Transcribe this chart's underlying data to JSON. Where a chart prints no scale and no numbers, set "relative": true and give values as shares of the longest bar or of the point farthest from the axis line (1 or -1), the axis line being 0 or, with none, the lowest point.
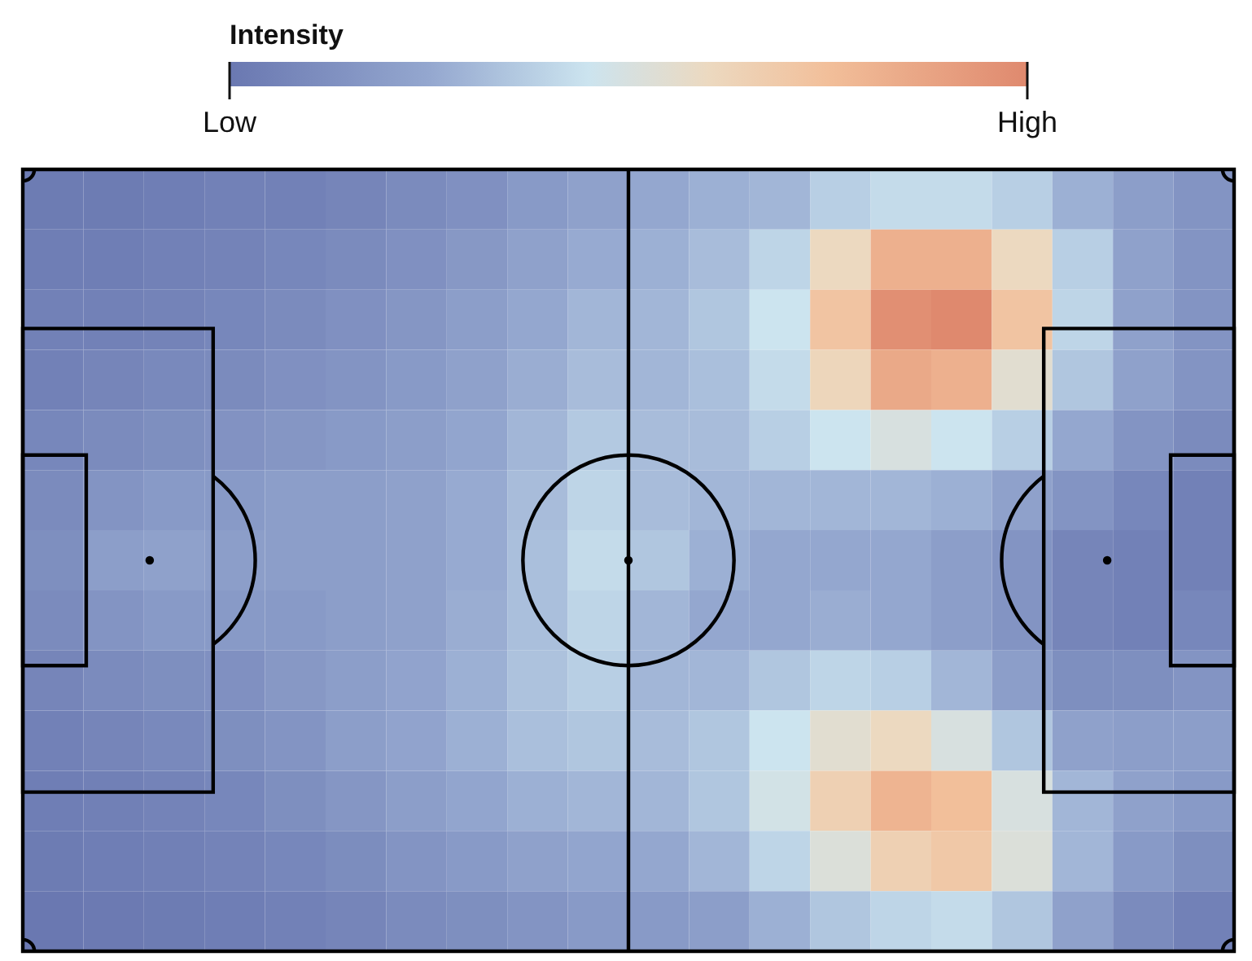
{
  "chart_data": {
    "type": "heatmap",
    "relative": true,
    "clabel": "Intensity",
    "cticks": [
      {
        "value": 0,
        "label": "Low"
      },
      {
        "value": 1,
        "label": "High"
      }
    ],
    "tick_labels": false,
    "categories": [
      null,
      null,
      null,
      null,
      null,
      null,
      null,
      null,
      null,
      null,
      null,
      null,
      null,
      null,
      null,
      null,
      null,
      null,
      null,
      null
    ],
    "y_categories": [
      null,
      null,
      null,
      null,
      null,
      null,
      null,
      null,
      null,
      null,
      null,
      null,
      null
    ],
    "cells": [
      [
        0.02,
        0.02,
        0.03,
        0.05,
        0.05,
        0.07,
        0.1,
        0.13,
        0.18,
        0.22,
        0.25,
        0.28,
        0.3,
        0.38,
        0.42,
        0.42,
        0.38,
        0.28,
        0.2,
        0.15
      ],
      [
        0.03,
        0.03,
        0.05,
        0.06,
        0.08,
        0.1,
        0.13,
        0.17,
        0.22,
        0.26,
        0.28,
        0.32,
        0.4,
        0.6,
        0.82,
        0.82,
        0.6,
        0.38,
        0.22,
        0.15
      ],
      [
        0.05,
        0.05,
        0.06,
        0.08,
        0.1,
        0.13,
        0.16,
        0.2,
        0.25,
        0.3,
        0.3,
        0.35,
        0.45,
        0.72,
        0.97,
        1,
        0.72,
        0.4,
        0.22,
        0.15
      ],
      [
        0.05,
        0.07,
        0.09,
        0.1,
        0.13,
        0.15,
        0.18,
        0.22,
        0.27,
        0.32,
        0.3,
        0.33,
        0.42,
        0.62,
        0.85,
        0.82,
        0.55,
        0.35,
        0.22,
        0.15
      ],
      [
        0.08,
        0.1,
        0.12,
        0.14,
        0.16,
        0.18,
        0.2,
        0.24,
        0.3,
        0.36,
        0.32,
        0.32,
        0.38,
        0.45,
        0.5,
        0.45,
        0.38,
        0.25,
        0.15,
        0.1
      ],
      [
        0.1,
        0.15,
        0.18,
        0.18,
        0.2,
        0.2,
        0.22,
        0.26,
        0.32,
        0.4,
        0.32,
        0.3,
        0.3,
        0.3,
        0.3,
        0.28,
        0.22,
        0.15,
        0.08,
        0.05
      ],
      [
        0.12,
        0.2,
        0.22,
        0.2,
        0.2,
        0.2,
        0.22,
        0.26,
        0.33,
        0.42,
        0.35,
        0.28,
        0.25,
        0.25,
        0.25,
        0.2,
        0.15,
        0.07,
        0.05,
        0.05
      ],
      [
        0.1,
        0.15,
        0.18,
        0.18,
        0.18,
        0.2,
        0.22,
        0.27,
        0.33,
        0.4,
        0.3,
        0.25,
        0.25,
        0.27,
        0.25,
        0.2,
        0.15,
        0.07,
        0.05,
        0.08
      ],
      [
        0.07,
        0.1,
        0.12,
        0.13,
        0.17,
        0.2,
        0.23,
        0.28,
        0.34,
        0.38,
        0.3,
        0.3,
        0.35,
        0.4,
        0.38,
        0.3,
        0.2,
        0.12,
        0.12,
        0.15
      ],
      [
        0.05,
        0.07,
        0.09,
        0.12,
        0.15,
        0.2,
        0.23,
        0.28,
        0.33,
        0.35,
        0.32,
        0.35,
        0.45,
        0.55,
        0.6,
        0.5,
        0.35,
        0.22,
        0.2,
        0.2
      ],
      [
        0.03,
        0.04,
        0.06,
        0.08,
        0.12,
        0.16,
        0.2,
        0.24,
        0.28,
        0.3,
        0.3,
        0.35,
        0.48,
        0.65,
        0.8,
        0.75,
        0.5,
        0.3,
        0.22,
        0.18
      ],
      [
        0.02,
        0.03,
        0.04,
        0.06,
        0.08,
        0.11,
        0.15,
        0.18,
        0.22,
        0.24,
        0.25,
        0.3,
        0.4,
        0.52,
        0.65,
        0.7,
        0.52,
        0.3,
        0.18,
        0.12
      ],
      [
        0,
        0.01,
        0.02,
        0.03,
        0.05,
        0.07,
        0.1,
        0.12,
        0.15,
        0.18,
        0.18,
        0.2,
        0.28,
        0.35,
        0.4,
        0.42,
        0.35,
        0.22,
        0.1,
        0.05
      ]
    ]
  }
}
